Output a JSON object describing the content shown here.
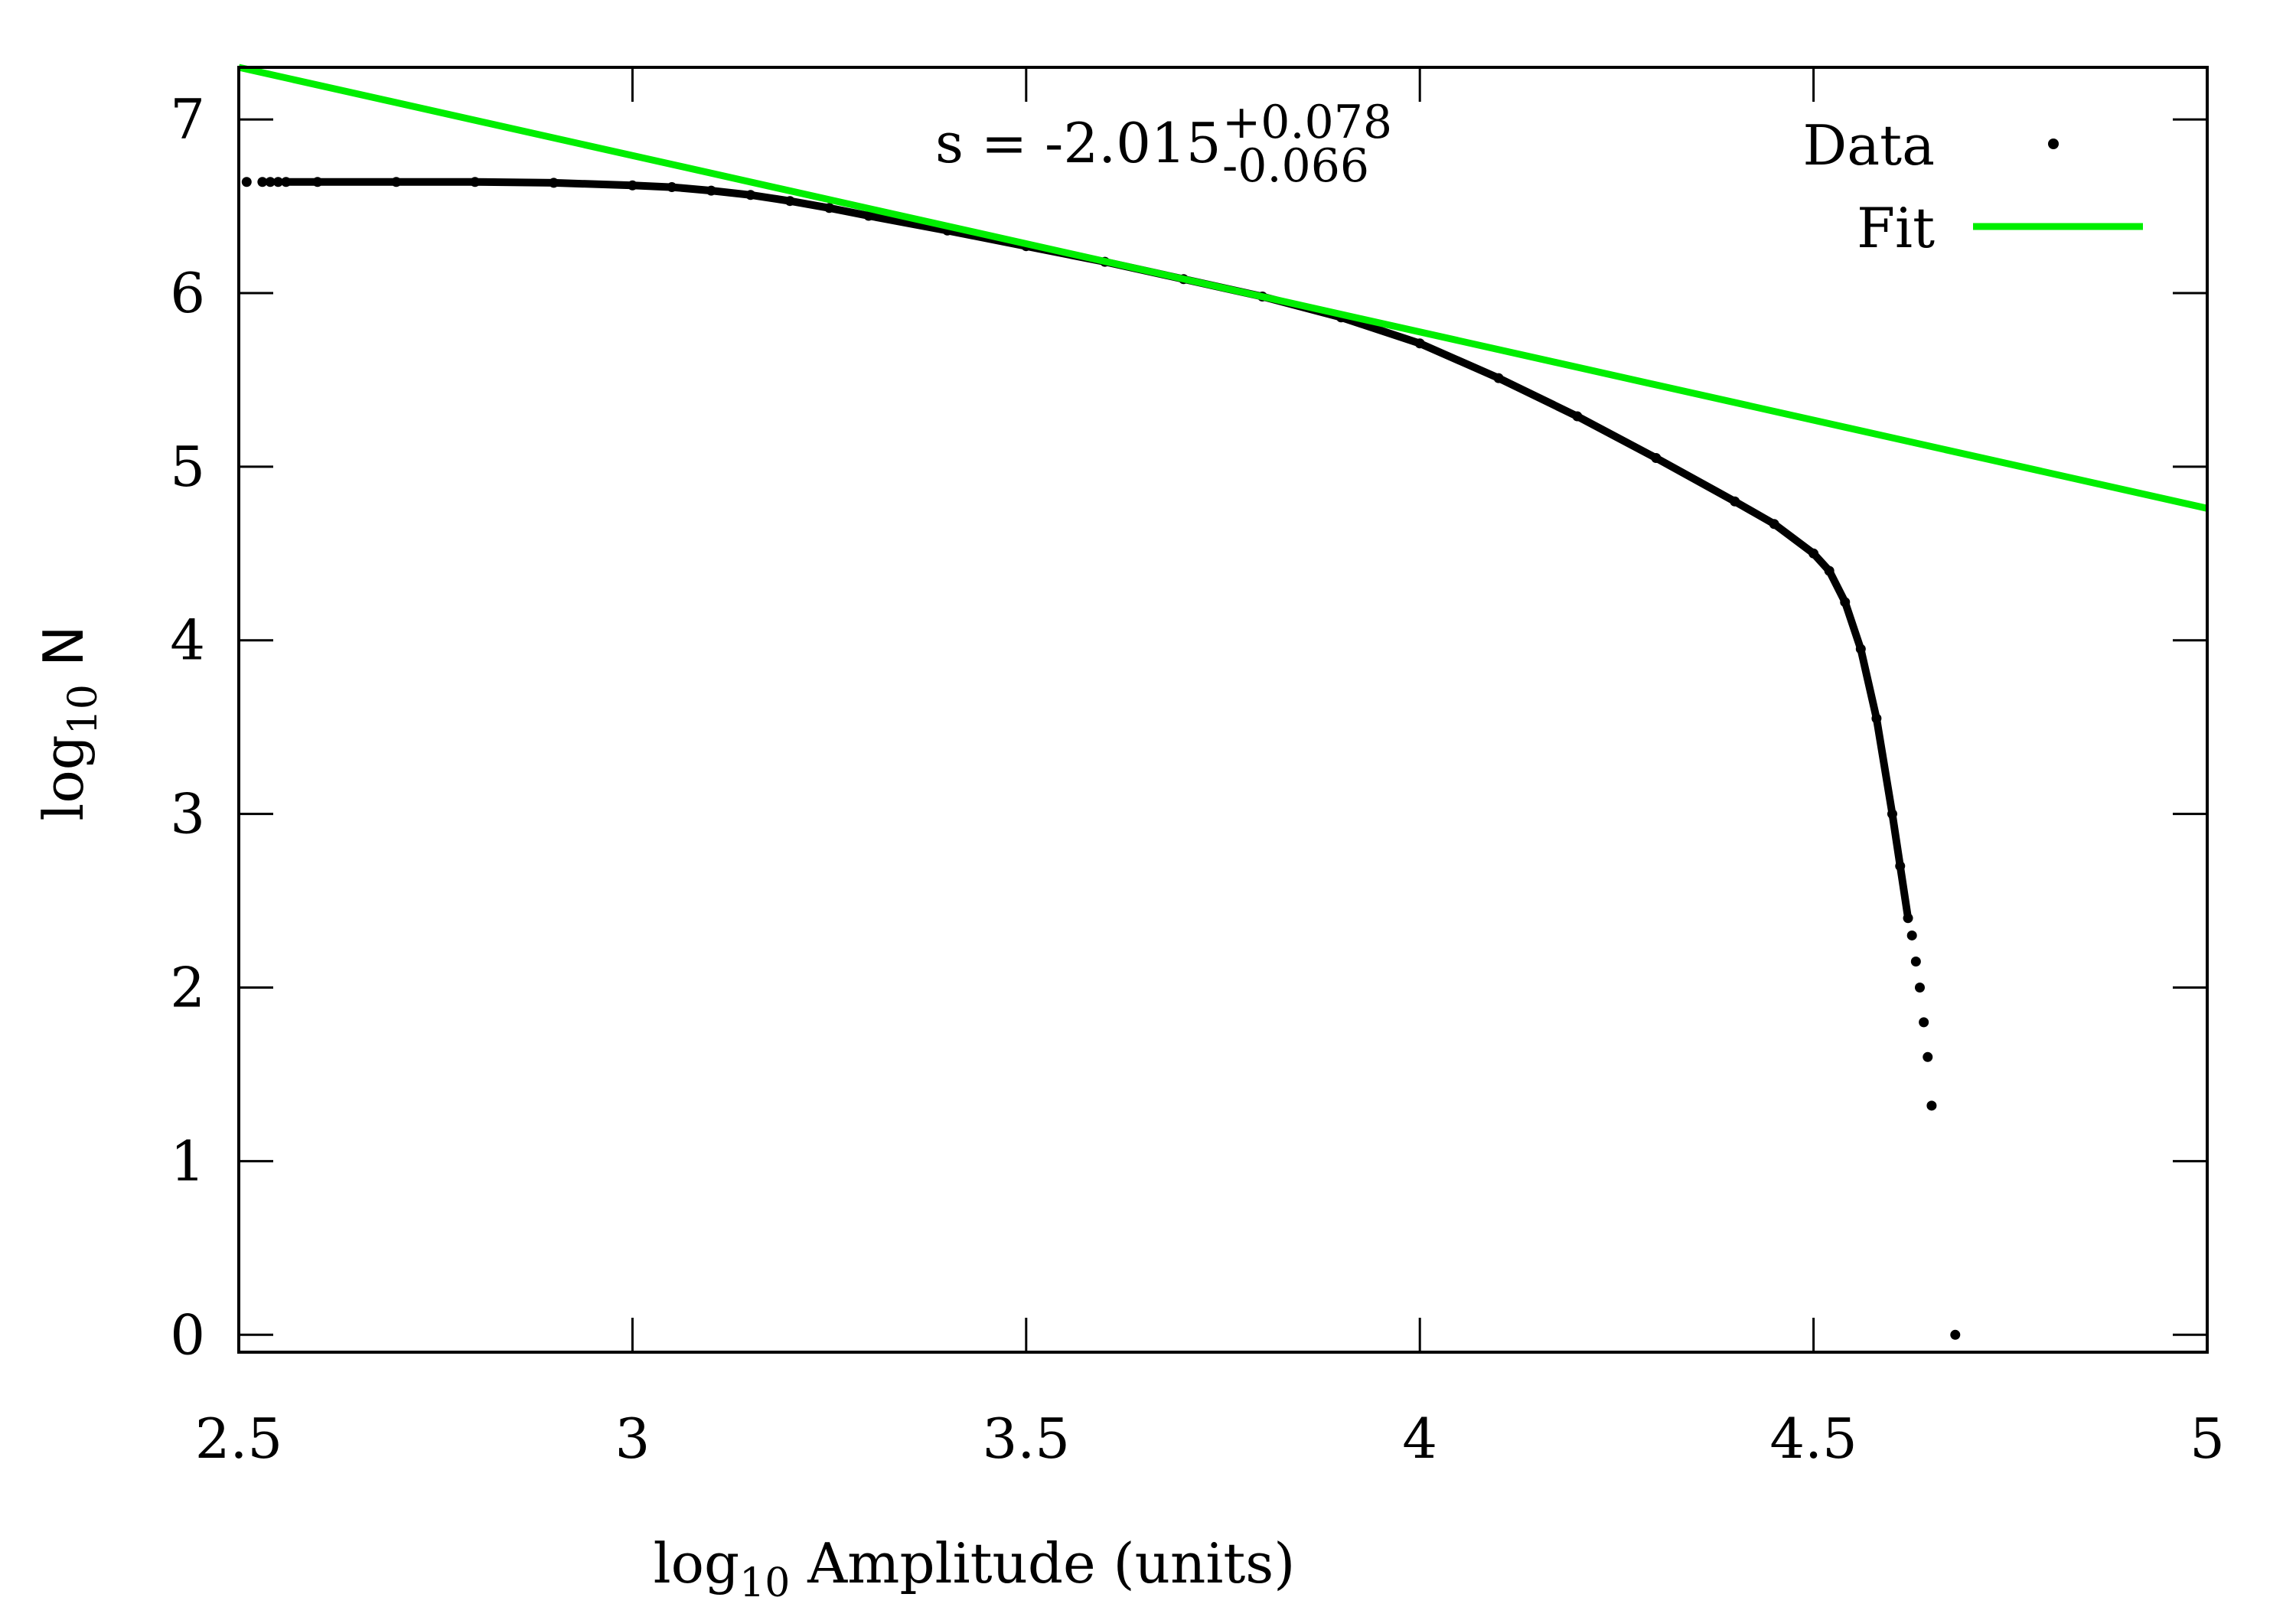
{
  "chart_data": {
    "type": "scatter",
    "xlabel": {
      "prefix": "log",
      "sub": "10",
      "suffix": " Amplitude (units)"
    },
    "ylabel": {
      "prefix": "log",
      "sub": "10",
      "suffix": " N"
    },
    "xlim": [
      2.5,
      5
    ],
    "ylim": [
      -0.1,
      7.3
    ],
    "xticks": [
      2.5,
      3,
      3.5,
      4,
      4.5,
      5
    ],
    "xtick_labels": [
      "2.5",
      "3",
      "3.5",
      "4",
      "4.5",
      "5"
    ],
    "yticks": [
      0,
      1,
      2,
      3,
      4,
      5,
      6,
      7
    ],
    "ytick_labels": [
      "0",
      "1",
      "2",
      "3",
      "4",
      "5",
      "6",
      "7"
    ],
    "grid": false,
    "legend_position": "top-right",
    "annotation": {
      "main": "s = -2.015",
      "sup": "+0.078",
      "sub": "-0.066"
    },
    "series": [
      {
        "name": "Data",
        "type": "scatter",
        "color": "#000000",
        "points": [
          [
            2.51,
            6.64
          ],
          [
            2.53,
            6.64
          ],
          [
            2.54,
            6.64
          ],
          [
            2.55,
            6.64
          ],
          [
            2.56,
            6.64
          ],
          [
            2.6,
            6.64
          ],
          [
            2.7,
            6.64
          ],
          [
            2.8,
            6.64
          ],
          [
            2.9,
            6.635
          ],
          [
            3.0,
            6.62
          ],
          [
            3.05,
            6.61
          ],
          [
            3.1,
            6.59
          ],
          [
            3.15,
            6.565
          ],
          [
            3.2,
            6.53
          ],
          [
            3.25,
            6.49
          ],
          [
            3.3,
            6.445
          ],
          [
            3.4,
            6.36
          ],
          [
            3.5,
            6.27
          ],
          [
            3.6,
            6.18
          ],
          [
            3.7,
            6.08
          ],
          [
            3.8,
            5.98
          ],
          [
            3.9,
            5.86
          ],
          [
            4.0,
            5.71
          ],
          [
            4.1,
            5.51
          ],
          [
            4.2,
            5.29
          ],
          [
            4.3,
            5.05
          ],
          [
            4.4,
            4.8
          ],
          [
            4.45,
            4.67
          ],
          [
            4.5,
            4.5
          ],
          [
            4.52,
            4.4
          ],
          [
            4.54,
            4.22
          ],
          [
            4.56,
            3.95
          ],
          [
            4.58,
            3.55
          ],
          [
            4.6,
            3.0
          ],
          [
            4.61,
            2.7
          ],
          [
            4.62,
            2.4
          ],
          [
            4.625,
            2.3
          ],
          [
            4.63,
            2.15
          ],
          [
            4.635,
            2.0
          ],
          [
            4.64,
            1.8
          ],
          [
            4.645,
            1.6
          ],
          [
            4.65,
            1.32
          ],
          [
            4.68,
            0.0
          ]
        ]
      },
      {
        "name": "Fit",
        "type": "line",
        "color": "#00ee00",
        "x": [
          2.5,
          5
        ],
        "y": [
          7.3,
          4.76
        ]
      }
    ]
  }
}
